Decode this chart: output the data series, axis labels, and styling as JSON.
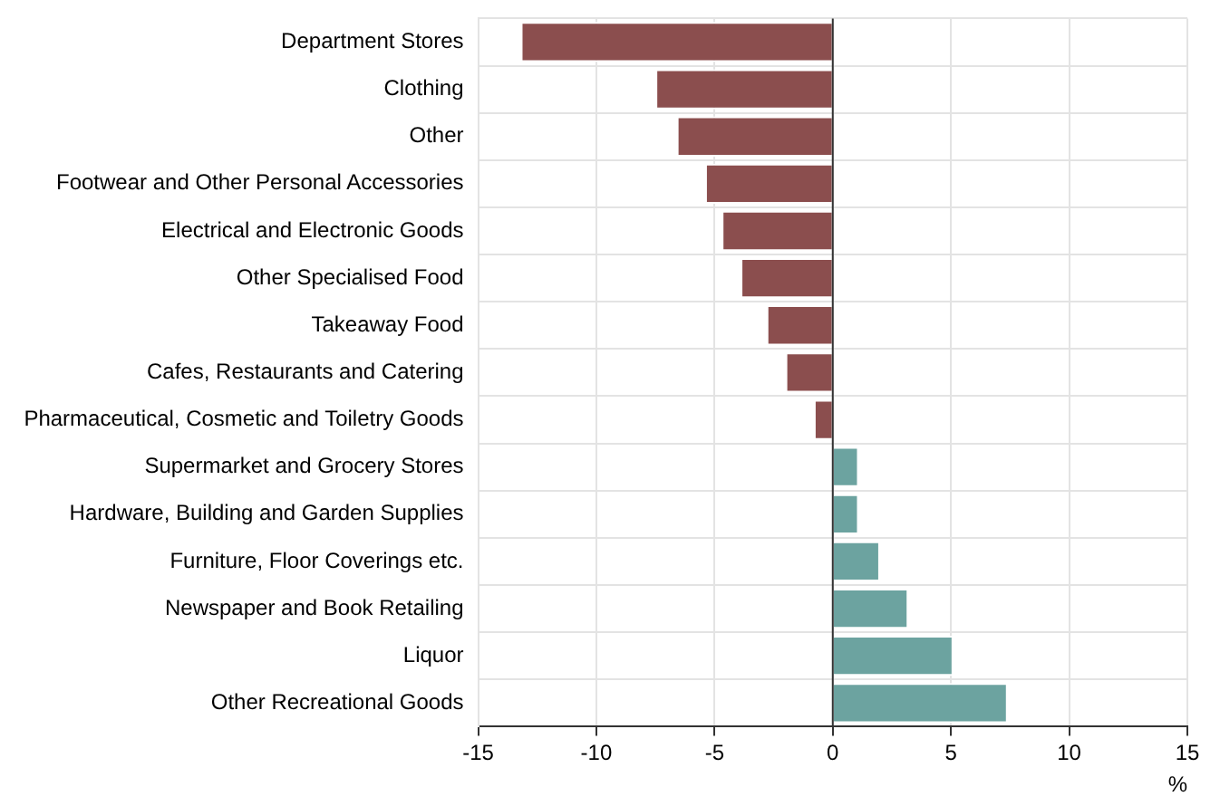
{
  "chart_data": {
    "type": "bar",
    "orientation": "horizontal",
    "xlabel": "%",
    "categories": [
      "Department Stores",
      "Clothing",
      "Other",
      "Footwear and Other Personal Accessories",
      "Electrical and Electronic Goods",
      "Other Specialised Food",
      "Takeaway Food",
      "Cafes, Restaurants and Catering",
      "Pharmaceutical, Cosmetic and Toiletry Goods",
      "Supermarket and Grocery Stores",
      "Hardware, Building and Garden Supplies",
      "Furniture, Floor Coverings etc.",
      "Newspaper and Book Retailing",
      "Liquor",
      "Other Recreational Goods"
    ],
    "values": [
      -13.2,
      -7.5,
      -6.6,
      -5.4,
      -4.7,
      -3.9,
      -2.8,
      -2.0,
      -0.8,
      1.1,
      1.1,
      2.0,
      3.2,
      5.1,
      7.4
    ],
    "colors": [
      "#8b4e4e",
      "#8b4e4e",
      "#8b4e4e",
      "#8b4e4e",
      "#8b4e4e",
      "#8b4e4e",
      "#8b4e4e",
      "#8b4e4e",
      "#8b4e4e",
      "#6ca3a0",
      "#6ca3a0",
      "#6ca3a0",
      "#6ca3a0",
      "#6ca3a0",
      "#6ca3a0"
    ],
    "xlim": [
      -15,
      15
    ],
    "xticks": [
      -15,
      -10,
      -5,
      0,
      5,
      10,
      15
    ],
    "grid": true
  }
}
